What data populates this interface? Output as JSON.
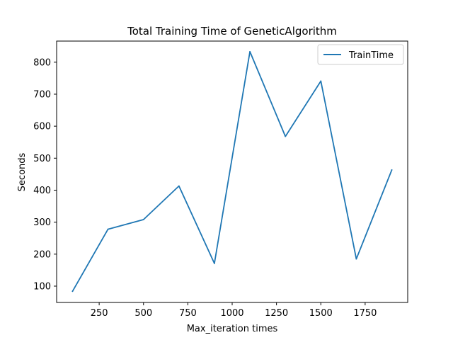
{
  "chart_data": {
    "type": "line",
    "title": "Total Training Time of GeneticAlgorithm",
    "xlabel": "Max_iteration times",
    "ylabel": "Seconds",
    "xlim": [
      10,
      1990
    ],
    "ylim": [
      49,
      866
    ],
    "xticks": [
      250,
      500,
      750,
      1000,
      1250,
      1500,
      1750
    ],
    "yticks": [
      100,
      200,
      300,
      400,
      500,
      600,
      700,
      800
    ],
    "grid": false,
    "legend": {
      "placement": "upper-right",
      "entries": [
        "TrainTime"
      ]
    },
    "series": [
      {
        "name": "TrainTime",
        "color": "#1f77b4",
        "x": [
          100,
          300,
          500,
          700,
          900,
          1100,
          1300,
          1500,
          1700,
          1900
        ],
        "y": [
          84,
          278,
          308,
          413,
          171,
          833,
          568,
          741,
          185,
          463
        ]
      }
    ]
  }
}
